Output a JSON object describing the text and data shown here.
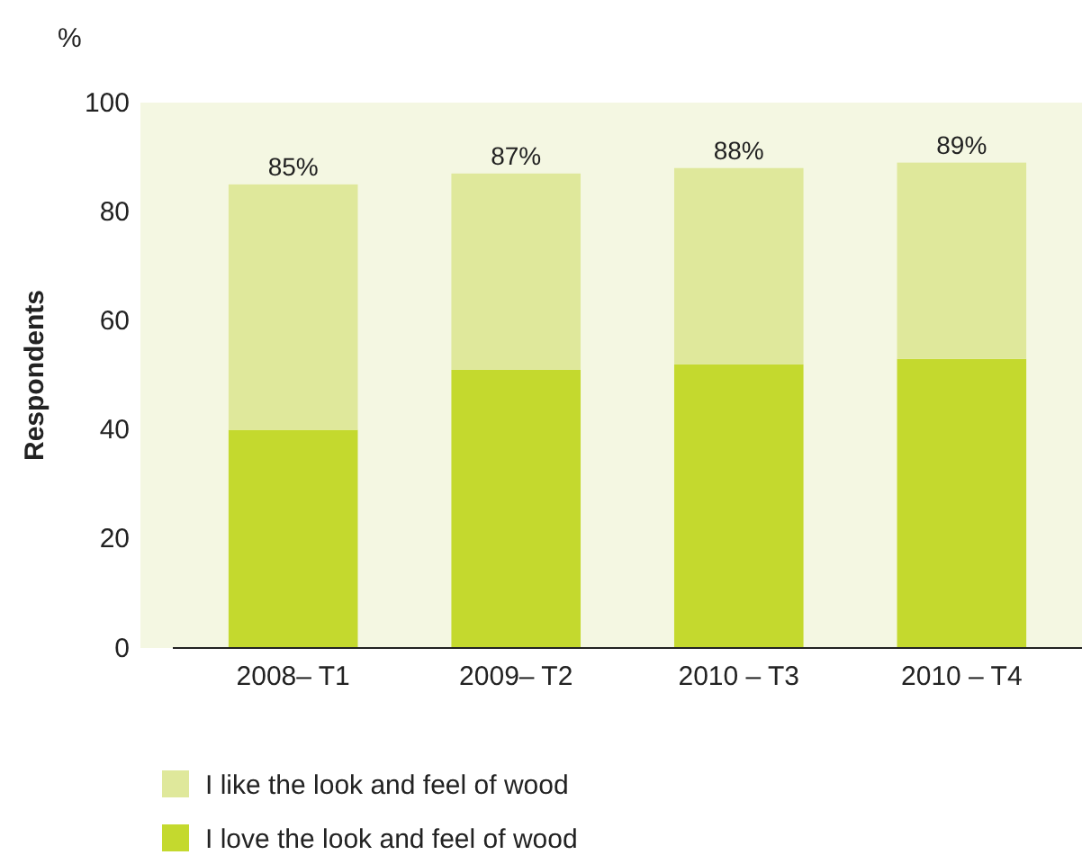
{
  "chart_data": {
    "type": "bar",
    "stacked": true,
    "ylabel": "Respondents",
    "annotations": [
      "%"
    ],
    "categories": [
      "2008– T1",
      "2009– T2",
      "2010 – T3",
      "2010 – T4"
    ],
    "series": [
      {
        "name": "I love the look and feel of wood",
        "color": "#c4d92e",
        "values": [
          40,
          51,
          52,
          53
        ]
      },
      {
        "name": "I like the look and feel of wood",
        "color": "#dfe89b",
        "values": [
          45,
          36,
          36,
          36
        ]
      }
    ],
    "totals": [
      "85%",
      "87%",
      "88%",
      "89%"
    ],
    "ylim": [
      0,
      100
    ],
    "yticks": [
      0,
      20,
      40,
      60,
      80,
      100
    ],
    "legend": "bottom"
  }
}
